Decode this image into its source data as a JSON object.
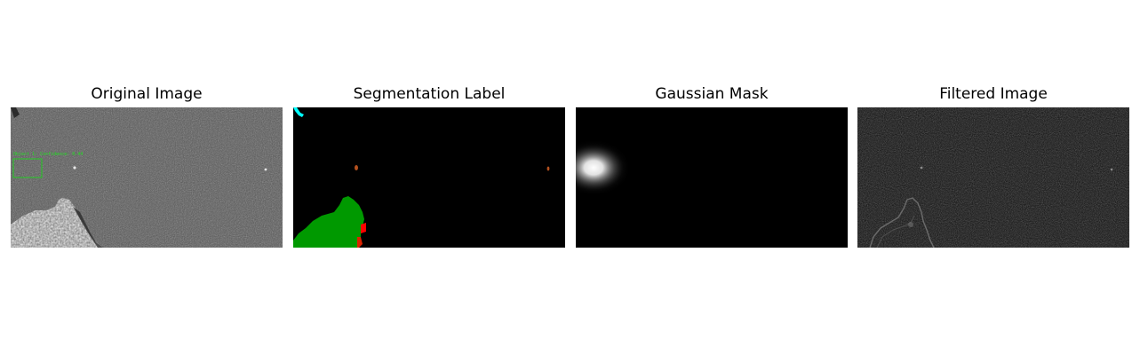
{
  "figure": {
    "panels": [
      {
        "id": "original",
        "title": "Original Image",
        "detection_label": "Object 1: Confidence: 0.44"
      },
      {
        "id": "segmentation",
        "title": "Segmentation Label"
      },
      {
        "id": "gaussian",
        "title": "Gaussian Mask"
      },
      {
        "id": "filtered",
        "title": "Filtered Image"
      }
    ]
  },
  "colors": {
    "background": "#ffffff",
    "sar_gray": "#6e6e6e",
    "seg_green": "#009900",
    "seg_cyan": "#00ffff",
    "seg_red": "#ff0000",
    "seg_brown": "#a0522d",
    "detection_box": "#22cc22"
  },
  "icons": {
    "original": "sar-ocean-image",
    "segmentation": "segmentation-map",
    "gaussian": "gaussian-heatmap",
    "filtered": "filtered-sar-image"
  }
}
